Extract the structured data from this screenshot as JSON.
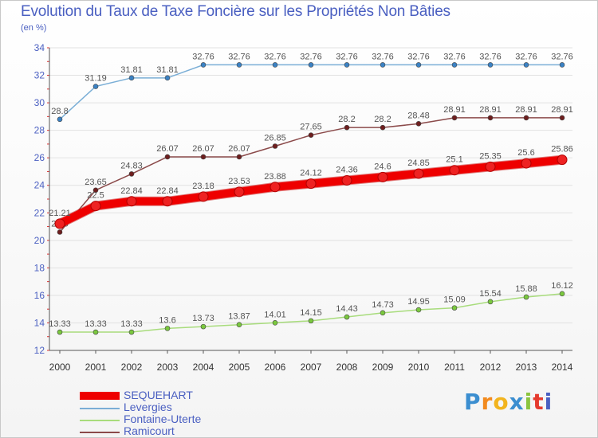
{
  "title": "Evolution du Taux de Taxe Foncière sur les Propriétés Non Bâties",
  "subtitle": "(en %)",
  "logo": [
    "P",
    "r",
    "o",
    "x",
    "i",
    "t",
    "i"
  ],
  "colors": {
    "axis_text": "#4a5fc1",
    "grid": "#e2e2e2",
    "axis": "#555555"
  },
  "chart_data": {
    "type": "line",
    "x": [
      2000,
      2001,
      2002,
      2003,
      2004,
      2005,
      2006,
      2007,
      2008,
      2009,
      2010,
      2011,
      2012,
      2013,
      2014
    ],
    "ylim": [
      12,
      34
    ],
    "yticks": [
      12,
      14,
      16,
      18,
      20,
      22,
      24,
      26,
      28,
      30,
      32,
      34
    ],
    "series": [
      {
        "name": "SEQUEHART",
        "color": "#ee0000",
        "marker": "#ee2222",
        "width": 10,
        "values": [
          21.21,
          22.5,
          22.84,
          22.84,
          23.18,
          23.53,
          23.88,
          24.12,
          24.36,
          24.6,
          24.85,
          25.1,
          25.35,
          25.6,
          25.86
        ],
        "labels": [
          "21.21",
          "22.5",
          "22.84",
          "22.84",
          "23.18",
          "23.53",
          "23.88",
          "24.12",
          "24.36",
          "24.6",
          "24.85",
          "25.1",
          "25.35",
          "25.6",
          "25.86"
        ]
      },
      {
        "name": "Levergies",
        "color": "#7aaed6",
        "marker": "#3b82c4",
        "width": 1.5,
        "values": [
          28.8,
          31.19,
          31.81,
          31.81,
          32.76,
          32.76,
          32.76,
          32.76,
          32.76,
          32.76,
          32.76,
          32.76,
          32.76,
          32.76,
          32.76
        ],
        "labels": [
          "28.8",
          "31.19",
          "31.81",
          "31.81",
          "32.76",
          "32.76",
          "32.76",
          "32.76",
          "32.76",
          "32.76",
          "32.76",
          "32.76",
          "32.76",
          "32.76",
          "32.76"
        ]
      },
      {
        "name": "Fontaine-Uterte",
        "color": "#a8dc7c",
        "marker": "#7ac83e",
        "width": 1.5,
        "values": [
          13.33,
          13.33,
          13.33,
          13.6,
          13.73,
          13.87,
          14.01,
          14.15,
          14.43,
          14.73,
          14.95,
          15.09,
          15.54,
          15.88,
          16.12
        ],
        "labels": [
          "13.33",
          "13.33",
          "13.33",
          "13.6",
          "13.73",
          "13.87",
          "14.01",
          "14.15",
          "14.43",
          "14.73",
          "14.95",
          "15.09",
          "15.54",
          "15.88",
          "16.12"
        ]
      },
      {
        "name": "Ramicourt",
        "color": "#8b4a4a",
        "marker": "#6e1e1e",
        "width": 1.5,
        "values": [
          20.6,
          23.65,
          24.83,
          26.07,
          26.07,
          26.07,
          26.85,
          27.65,
          28.2,
          28.2,
          28.48,
          28.91,
          28.91,
          28.91,
          28.91
        ],
        "labels": [
          "20.6",
          "23.65",
          "24.83",
          "26.07",
          "26.07",
          "26.07",
          "26.85",
          "27.65",
          "28.2",
          "28.2",
          "28.48",
          "28.91",
          "28.91",
          "28.91",
          "28.91"
        ]
      }
    ],
    "legend_position": "bottom-left"
  }
}
